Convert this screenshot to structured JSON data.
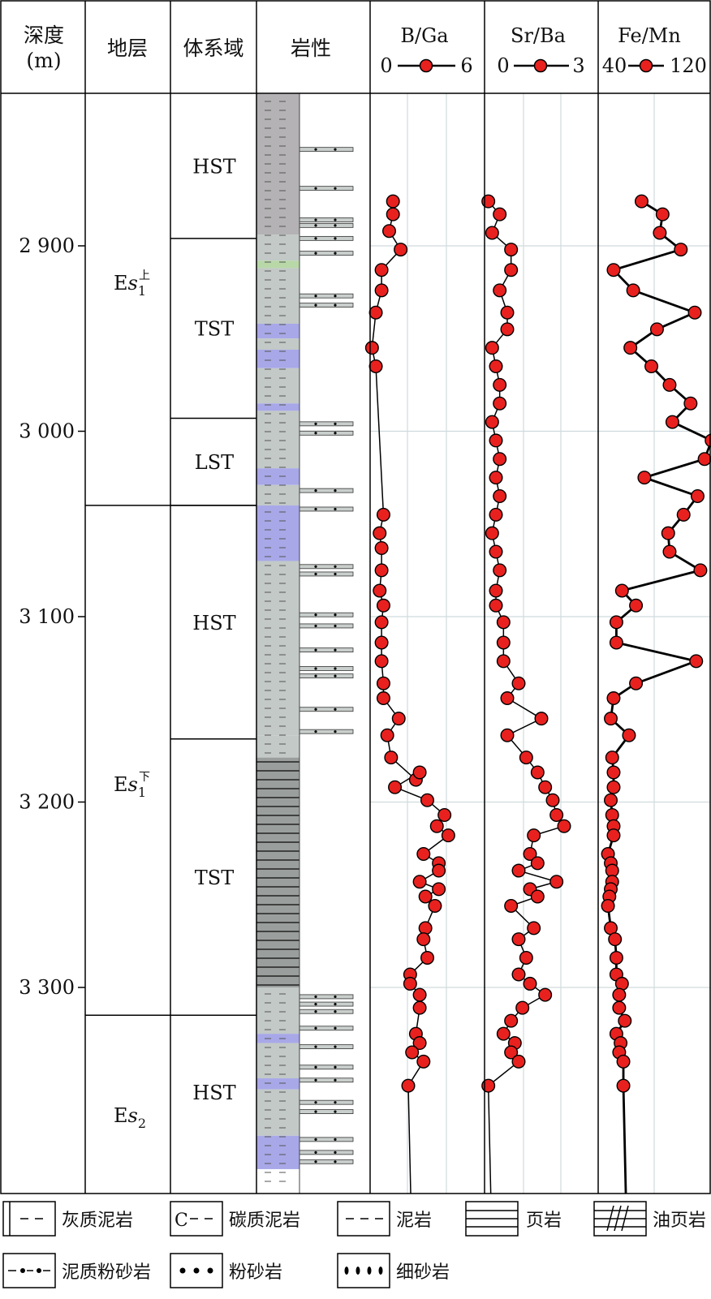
{
  "headers": {
    "depth": [
      "深度",
      "(m)"
    ],
    "strata": "地层",
    "systems_tract": "体系域",
    "lithology": "岩性"
  },
  "colors": {
    "marker_fill": "#e8211f",
    "line": "#000000",
    "grid": "#d0dadd",
    "gray_mudstone": "#b4b2b4",
    "mudstone": "#c2c9c6",
    "purple_layer": "#a8a8e8",
    "green_layer": "#b8d8a8",
    "shale": "#9a9f9d",
    "siltstone_bar": "#c9cfcc"
  },
  "depth_axis": {
    "ticks": [
      2900,
      3000,
      3100,
      3200,
      3300
    ],
    "tick_labels": [
      "2 900",
      "3 000",
      "3 100",
      "3 200",
      "3 300"
    ],
    "range": [
      2818,
      3398
    ]
  },
  "strata": [
    {
      "label": "Es",
      "sub": "1",
      "sup": "上",
      "top": 2818,
      "base": 3040
    },
    {
      "label": "Es",
      "sub": "1",
      "sup": "下",
      "top": 3040,
      "base": 3315
    },
    {
      "label": "Es",
      "sub": "2",
      "sup": "",
      "top": 3315,
      "base": 3398
    }
  ],
  "systems_tracts": [
    {
      "label": "HST",
      "top": 2818,
      "base": 2896
    },
    {
      "label": "TST",
      "top": 2896,
      "base": 2993
    },
    {
      "label": "LST",
      "top": 2993,
      "base": 3040
    },
    {
      "label": "HST",
      "top": 3040,
      "base": 3166
    },
    {
      "label": "TST",
      "top": 3166,
      "base": 3315
    },
    {
      "label": "HST",
      "top": 3315,
      "base": 3398
    }
  ],
  "chart_data": [
    {
      "type": "line",
      "title": "B/Ga",
      "xlim": [
        0,
        6
      ],
      "x_range_labels": [
        "0",
        "6"
      ],
      "y_axis": "depth (m)",
      "depth": [
        2876,
        2883,
        2892,
        2902,
        2913,
        2924,
        2936,
        2955,
        2965,
        3045,
        3055,
        3063,
        3075,
        3086,
        3094,
        3103,
        3114,
        3124,
        3136,
        3144,
        3155,
        3164,
        3176,
        3188,
        3184,
        3192,
        3199,
        3207,
        3213,
        3218,
        3228,
        3233,
        3237,
        3243,
        3247,
        3251,
        3256,
        3268,
        3274,
        3284,
        3293,
        3298,
        3304,
        3311,
        3325,
        3330,
        3335,
        3340,
        3353
      ],
      "values": [
        1.2,
        1.2,
        1.0,
        1.6,
        0.6,
        0.6,
        0.3,
        0.1,
        0.3,
        0.7,
        0.5,
        0.6,
        0.6,
        0.5,
        0.7,
        0.6,
        0.6,
        0.6,
        0.7,
        0.7,
        1.5,
        0.9,
        1.1,
        2.4,
        2.6,
        1.3,
        3.0,
        3.9,
        3.5,
        4.1,
        2.8,
        3.6,
        3.6,
        2.6,
        3.6,
        2.9,
        3.4,
        2.9,
        2.8,
        3.0,
        2.1,
        2.1,
        2.6,
        2.6,
        2.4,
        2.6,
        2.2,
        2.8,
        2.0
      ]
    },
    {
      "type": "line",
      "title": "Sr/Ba",
      "xlim": [
        0,
        3
      ],
      "x_range_labels": [
        "0",
        "3"
      ],
      "y_axis": "depth (m)",
      "depth": [
        2876,
        2883,
        2893,
        2902,
        2913,
        2924,
        2936,
        2945,
        2955,
        2965,
        2975,
        2985,
        2995,
        3005,
        3015,
        3025,
        3035,
        3045,
        3055,
        3065,
        3075,
        3086,
        3094,
        3103,
        3114,
        3124,
        3136,
        3144,
        3155,
        3164,
        3176,
        3184,
        3192,
        3199,
        3207,
        3213,
        3218,
        3228,
        3233,
        3237,
        3243,
        3247,
        3251,
        3256,
        3268,
        3274,
        3284,
        3293,
        3298,
        3304,
        3311,
        3318,
        3325,
        3330,
        3335,
        3340,
        3353
      ],
      "values": [
        0.1,
        0.4,
        0.2,
        0.7,
        0.7,
        0.4,
        0.6,
        0.6,
        0.2,
        0.3,
        0.4,
        0.4,
        0.2,
        0.3,
        0.4,
        0.3,
        0.4,
        0.3,
        0.2,
        0.3,
        0.4,
        0.3,
        0.3,
        0.5,
        0.5,
        0.5,
        0.9,
        0.6,
        1.5,
        0.6,
        1.1,
        1.4,
        1.6,
        1.8,
        1.9,
        2.1,
        1.3,
        1.2,
        1.4,
        0.9,
        1.9,
        1.2,
        1.4,
        0.7,
        1.3,
        0.9,
        1.1,
        0.9,
        1.2,
        1.6,
        1.0,
        0.7,
        0.5,
        0.8,
        0.7,
        0.9,
        0.1
      ]
    },
    {
      "type": "line",
      "title": "Fe/Mn",
      "xlim": [
        40,
        120
      ],
      "x_range_labels": [
        "40",
        "120"
      ],
      "y_axis": "depth (m)",
      "depth": [
        2876,
        2883,
        2893,
        2902,
        2913,
        2924,
        2936,
        2945,
        2955,
        2965,
        2975,
        2985,
        2995,
        3005,
        3015,
        3025,
        3035,
        3045,
        3055,
        3065,
        3075,
        3086,
        3094,
        3103,
        3114,
        3124,
        3136,
        3144,
        3155,
        3164,
        3176,
        3184,
        3192,
        3199,
        3207,
        3213,
        3218,
        3228,
        3233,
        3237,
        3243,
        3247,
        3251,
        3256,
        3268,
        3274,
        3284,
        3293,
        3298,
        3304,
        3311,
        3318,
        3325,
        3330,
        3335,
        3340,
        3353
      ],
      "values": [
        71,
        86,
        84,
        99,
        51,
        65,
        109,
        82,
        63,
        78,
        91,
        106,
        93,
        121,
        116,
        73,
        111,
        101,
        90,
        91,
        113,
        57,
        67,
        53,
        53,
        110,
        67,
        51,
        49,
        62,
        50,
        51,
        51,
        49,
        50,
        51,
        51,
        47,
        49,
        50,
        50,
        49,
        48,
        47,
        49,
        52,
        53,
        53,
        57,
        55,
        55,
        59,
        53,
        56,
        55,
        58,
        58
      ]
    }
  ],
  "legend": [
    {
      "symbol": "gray_mudstone",
      "label": "灰质泥岩"
    },
    {
      "symbol": "carbon_mudstone",
      "label": "碳质泥岩",
      "glyph": "C"
    },
    {
      "symbol": "mudstone",
      "label": "泥岩"
    },
    {
      "symbol": "shale",
      "label": "页岩"
    },
    {
      "symbol": "oil_shale",
      "label": "油页岩"
    },
    {
      "symbol": "muddy_siltstone",
      "label": "泥质粉砂岩"
    },
    {
      "symbol": "siltstone",
      "label": "粉砂岩"
    },
    {
      "symbol": "fine_sandstone",
      "label": "细砂岩"
    }
  ]
}
